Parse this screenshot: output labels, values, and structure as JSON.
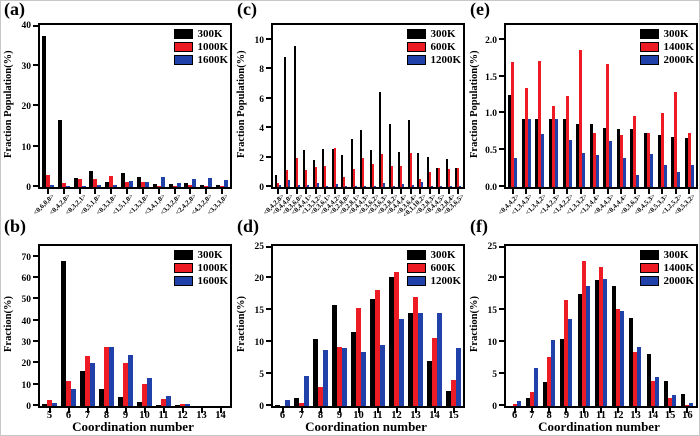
{
  "figure": {
    "background": "#ffffff"
  },
  "chart_data": [
    {
      "id": "a",
      "type": "bar",
      "panel_label": "(a)",
      "ylabel": "Fraction Population(%)",
      "xlabel": "",
      "ylim": [
        0,
        40
      ],
      "ytick_values": [
        0,
        10,
        20,
        30,
        40
      ],
      "ytick_labels": [
        "0",
        "10",
        "20",
        "30",
        "40"
      ],
      "xtick_rotation": 45,
      "legend_position": "top-right",
      "grid": false,
      "categories": [
        "<0,6,0,0>",
        "<0,4,2,0>",
        "<0,3,2,1>",
        "<0,5,1,0>",
        "<0,3,3,0>",
        "<1,5,1,0>",
        "<1,3,3,0>",
        "<3,4,1,0>",
        "<3,3,2,0>",
        "<2,4,2,0>",
        "<4,3,2,0>",
        "<3,3,3,0>"
      ],
      "series": [
        {
          "name": "300K",
          "color": "#000000",
          "values": [
            37.2,
            16.6,
            2.2,
            3.9,
            1.2,
            3.4,
            2.4,
            0.8,
            0.7,
            1.0,
            0.5,
            0.4
          ]
        },
        {
          "name": "1000K",
          "color": "#ed1c24",
          "values": [
            3.0,
            0.9,
            1.9,
            2.0,
            2.7,
            1.2,
            1.2,
            0.3,
            0.3,
            0.4,
            0.3,
            0.3
          ]
        },
        {
          "name": "1600K",
          "color": "#2040aa",
          "values": [
            0.5,
            0.3,
            0.3,
            0.4,
            0.5,
            1.5,
            1.2,
            2.4,
            1.0,
            2.1,
            2.3,
            1.7
          ]
        }
      ]
    },
    {
      "id": "b",
      "type": "bar",
      "panel_label": "(b)",
      "ylabel": "Fraction(%)",
      "xlabel": "Coordination number",
      "ylim": [
        0,
        75
      ],
      "ytick_values": [
        0,
        10,
        20,
        30,
        40,
        50,
        60,
        70
      ],
      "ytick_labels": [
        "0",
        "10",
        "20",
        "30",
        "40",
        "50",
        "60",
        "70"
      ],
      "xtick_rotation": 0,
      "legend_position": "top-right",
      "grid": false,
      "categories": [
        "5",
        "6",
        "7",
        "8",
        "9",
        "10",
        "11",
        "12",
        "13",
        "14"
      ],
      "series": [
        {
          "name": "300K",
          "color": "#000000",
          "values": [
            0.8,
            68.0,
            16.3,
            8.0,
            4.3,
            1.7,
            0.5,
            0.2,
            0,
            0
          ]
        },
        {
          "name": "1000K",
          "color": "#ed1c24",
          "values": [
            2.8,
            11.5,
            23.3,
            27.5,
            20.0,
            10.3,
            3.2,
            0.8,
            0,
            0
          ]
        },
        {
          "name": "1600K",
          "color": "#2040aa",
          "values": [
            1.2,
            8.0,
            20.3,
            27.5,
            23.8,
            13.2,
            4.7,
            1.0,
            0,
            0
          ]
        }
      ]
    },
    {
      "id": "c",
      "type": "bar",
      "panel_label": "(c)",
      "ylabel": "Fraction Population(%)",
      "xlabel": "",
      "ylim": [
        0,
        11
      ],
      "ytick_values": [
        0,
        2,
        4,
        6,
        8,
        10
      ],
      "ytick_labels": [
        "0",
        "2",
        "4",
        "6",
        "8",
        "10"
      ],
      "xtick_rotation": 45,
      "legend_position": "top-right",
      "grid": false,
      "categories": [
        "<0,4,2,8>",
        "<0,4,4,0>",
        "<0,3,6,0>",
        "<0,4,4,1>",
        "<1,3,3,2>",
        "<0,3,6,1>",
        "<0,4,4,2>",
        "<0,2,8,0>",
        "<0,2,8,1>",
        "<0,4,4,3>",
        "<0,3,6,2>",
        "<0,3,6,3>",
        "<0,2,8,2>",
        "<0,4,4,4>",
        "<0,3,6,4>",
        "<0,1,10,2>",
        "<0,2,8,3>",
        "<0,4,4,5>",
        "<0,2,8,4>",
        "<0,3,6,5>"
      ],
      "series": [
        {
          "name": "300K",
          "color": "#000000",
          "values": [
            0.8,
            8.8,
            9.6,
            2.5,
            1.85,
            2.55,
            2.6,
            2.15,
            3.25,
            3.9,
            2.5,
            6.45,
            4.3,
            2.4,
            4.55,
            2.3,
            2.05,
            1.3,
            1.9,
            1.3
          ]
        },
        {
          "name": "600K",
          "color": "#ed1c24",
          "values": [
            0.25,
            1.15,
            2.0,
            1.15,
            1.35,
            1.4,
            2.65,
            0.7,
            1.2,
            2.0,
            1.55,
            2.25,
            1.45,
            1.4,
            2.3,
            0.55,
            1.0,
            1.3,
            1.2,
            1.3
          ]
        },
        {
          "name": "1200K",
          "color": "#2040aa",
          "values": [
            0.15,
            0.45,
            0.15,
            0.15,
            0.25,
            0.1,
            0.2,
            0.1,
            0.1,
            0.1,
            0.1,
            0.3,
            0.1,
            0.2,
            0.15,
            0.35,
            0.1,
            0.05,
            0.05,
            0.05
          ]
        }
      ]
    },
    {
      "id": "d",
      "type": "bar",
      "panel_label": "(d)",
      "ylabel": "Fraction(%)",
      "xlabel": "Coordination number",
      "ylim": [
        0,
        25
      ],
      "ytick_values": [
        0,
        5,
        10,
        15,
        20,
        25
      ],
      "ytick_labels": [
        "0",
        "5",
        "10",
        "15",
        "20",
        "25"
      ],
      "xtick_rotation": 0,
      "legend_position": "top-right",
      "grid": false,
      "categories": [
        "6",
        "7",
        "8",
        "9",
        "10",
        "11",
        "12",
        "13",
        "14",
        "15"
      ],
      "series": [
        {
          "name": "300K",
          "color": "#000000",
          "values": [
            0.2,
            1.2,
            10.4,
            15.8,
            11.5,
            16.7,
            20.2,
            14.6,
            7.0,
            2.3
          ]
        },
        {
          "name": "600K",
          "color": "#ed1c24",
          "values": [
            0,
            0.4,
            3.0,
            9.2,
            15.3,
            18.2,
            21.0,
            17.0,
            10.7,
            4.0
          ]
        },
        {
          "name": "1200K",
          "color": "#2040aa",
          "values": [
            1.0,
            4.7,
            8.7,
            9.0,
            8.4,
            9.5,
            13.6,
            14.5,
            14.5,
            9.0
          ]
        }
      ]
    },
    {
      "id": "e",
      "type": "bar",
      "panel_label": "(e)",
      "ylabel": "Fraction Population(%)",
      "xlabel": "",
      "ylim": [
        0,
        2.2
      ],
      "ytick_values": [
        0,
        0.5,
        1.0,
        1.5,
        2.0
      ],
      "ytick_labels": [
        "0.0",
        "0.5",
        "1.0",
        "1.5",
        "2.0"
      ],
      "xtick_rotation": 45,
      "legend_position": "top-right",
      "grid": false,
      "categories": [
        "<0,4,4,2>",
        "<1,3,4,3>",
        "<1,3,4,2>",
        "<1,4,2,3>",
        "<1,4,2,2>",
        "<1,3,3,2>",
        "<1,3,4,4>",
        "<0,4,4,3>",
        "<0,4,4,4>",
        "<0,3,6,3>",
        "<0,4,5,3>",
        "<0,5,3,3>",
        "<1,2,5,2>",
        "<0,5,3,2>"
      ],
      "series": [
        {
          "name": "300K",
          "color": "#000000",
          "values": [
            1.25,
            0.93,
            0.93,
            0.92,
            0.92,
            0.86,
            0.85,
            0.8,
            0.79,
            0.79,
            0.74,
            0.71,
            0.68,
            0.67
          ]
        },
        {
          "name": "1400K",
          "color": "#ed1c24",
          "values": [
            1.7,
            1.35,
            1.71,
            1.1,
            1.23,
            1.86,
            0.74,
            1.67,
            0.71,
            0.97,
            0.74,
            1.0,
            1.29,
            0.73
          ]
        },
        {
          "name": "2000K",
          "color": "#2040aa",
          "values": [
            0.4,
            0.93,
            0.72,
            0.92,
            0.64,
            0.46,
            0.44,
            0.63,
            0.39,
            0.16,
            0.45,
            0.3,
            0.21,
            0.3
          ]
        }
      ]
    },
    {
      "id": "f",
      "type": "bar",
      "panel_label": "(f)",
      "ylabel": "Fraction(%)",
      "xlabel": "Coordination number",
      "ylim": [
        0,
        25
      ],
      "ytick_values": [
        0,
        5,
        10,
        15,
        20,
        25
      ],
      "ytick_labels": [
        "0",
        "5",
        "10",
        "15",
        "20",
        "25"
      ],
      "xtick_rotation": 0,
      "legend_position": "top-right",
      "grid": false,
      "categories": [
        "6",
        "7",
        "8",
        "9",
        "10",
        "11",
        "12",
        "13",
        "14",
        "15",
        "16"
      ],
      "series": [
        {
          "name": "300K",
          "color": "#000000",
          "values": [
            0,
            1.2,
            3.8,
            10.4,
            17.5,
            19.7,
            18.8,
            13.8,
            8.1,
            3.9,
            1.9
          ]
        },
        {
          "name": "1400K",
          "color": "#ed1c24",
          "values": [
            0.3,
            2.2,
            7.7,
            16.5,
            22.6,
            21.7,
            15.2,
            8.4,
            3.9,
            1.3,
            0.1
          ]
        },
        {
          "name": "2000K",
          "color": "#2040aa",
          "values": [
            0.8,
            6.0,
            10.3,
            13.6,
            18.8,
            19.8,
            14.8,
            9.2,
            4.5,
            1.7,
            0.5
          ]
        }
      ]
    }
  ]
}
